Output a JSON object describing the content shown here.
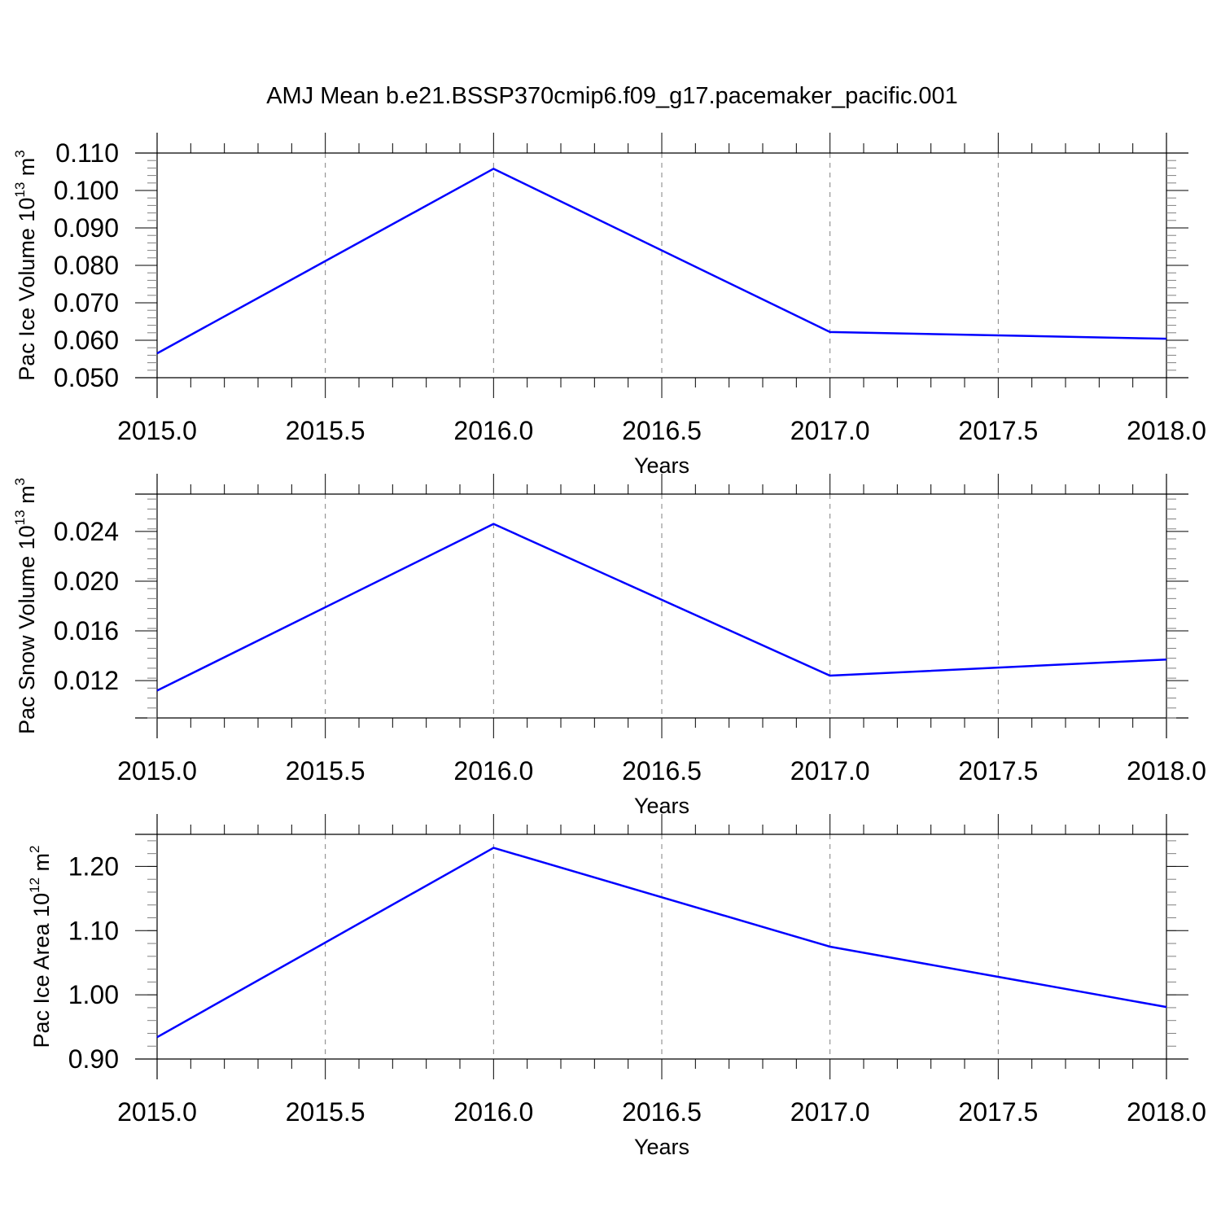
{
  "title": "AMJ Mean b.e21.BSSP370cmip6.f09_g17.pacemaker_pacific.001",
  "colors": {
    "line": "#0000ff",
    "axis": "#000000",
    "grid": "#808080"
  },
  "chart_data": [
    {
      "type": "line",
      "x": [
        2015,
        2016,
        2017,
        2018
      ],
      "series": [
        {
          "values": [
            0.0565,
            0.1058,
            0.0622,
            0.0604
          ]
        }
      ],
      "xlabel": "Years",
      "ylabel": {
        "text": "Pac Ice Volume 10",
        "sup": "13",
        "unit": " m",
        "unit_sup": "3"
      },
      "xlim": [
        2015,
        2018
      ],
      "ylim": [
        0.05,
        0.11
      ],
      "xticks": [
        "2015.0",
        "2015.5",
        "2016.0",
        "2016.5",
        "2017.0",
        "2017.5",
        "2018.0"
      ],
      "yticks": [
        "0.050",
        "0.060",
        "0.070",
        "0.080",
        "0.090",
        "0.100",
        "0.110"
      ],
      "grid": "vertical dashed"
    },
    {
      "type": "line",
      "x": [
        2015,
        2016,
        2017,
        2018
      ],
      "series": [
        {
          "values": [
            0.0112,
            0.0246,
            0.0124,
            0.0137
          ]
        }
      ],
      "xlabel": "Years",
      "ylabel": {
        "text": "Pac Snow Volume 10",
        "sup": "13",
        "unit": " m",
        "unit_sup": "3"
      },
      "xlim": [
        2015,
        2018
      ],
      "ylim": [
        0.009,
        0.027
      ],
      "xticks": [
        "2015.0",
        "2015.5",
        "2016.0",
        "2016.5",
        "2017.0",
        "2017.5",
        "2018.0"
      ],
      "yticks": [
        "0.012",
        "0.016",
        "0.020",
        "0.024"
      ],
      "grid": "vertical dashed"
    },
    {
      "type": "line",
      "x": [
        2015,
        2016,
        2017,
        2018
      ],
      "series": [
        {
          "values": [
            0.934,
            1.229,
            1.075,
            0.981
          ]
        }
      ],
      "xlabel": "Years",
      "ylabel": {
        "text": "Pac Ice Area 10",
        "sup": "12",
        "unit": " m",
        "unit_sup": "2"
      },
      "xlim": [
        2015,
        2018
      ],
      "ylim": [
        0.9,
        1.25
      ],
      "xticks": [
        "2015.0",
        "2015.5",
        "2016.0",
        "2016.5",
        "2017.0",
        "2017.5",
        "2018.0"
      ],
      "yticks": [
        "0.90",
        "1.00",
        "1.10",
        "1.20"
      ],
      "grid": "vertical dashed"
    }
  ]
}
